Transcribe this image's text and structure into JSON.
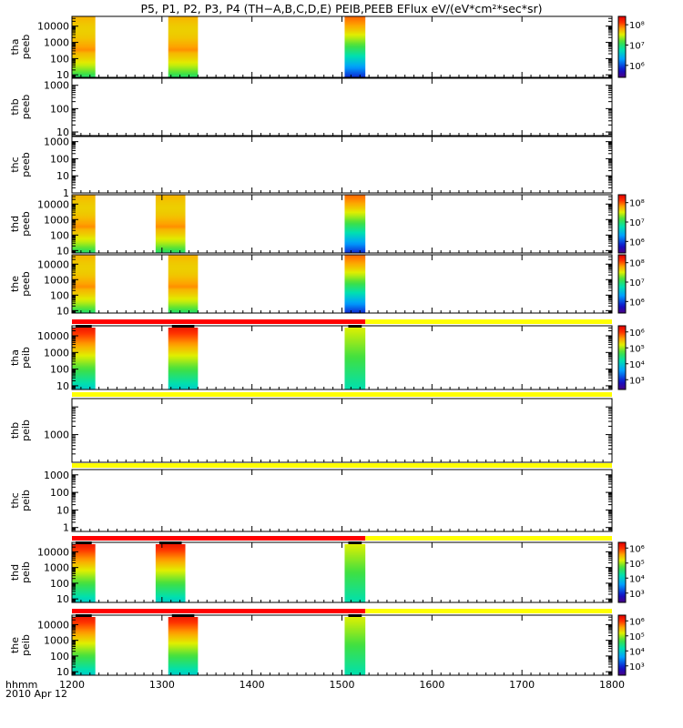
{
  "title": "P5, P1, P2, P3, P4 (TH−A,B,C,D,E) PEIB,PEEB EFlux eV/(eV*cm²*sec*sr)",
  "bottom_labels": {
    "format": "hhmm",
    "date": "2010 Apr 12"
  },
  "chart_data": {
    "type": "heatmap",
    "x_axis": {
      "range": [
        1200,
        1800
      ],
      "ticks": [
        1200,
        1300,
        1400,
        1500,
        1600,
        1700,
        1800
      ],
      "label": "hhmm"
    },
    "panels": [
      {
        "probe": "tha",
        "quantity": "peeb",
        "y_label": [
          "tha",
          "peeb"
        ],
        "yscale": "log",
        "yrange": [
          7,
          40000
        ],
        "yticks": [
          10,
          100,
          1000,
          10000
        ],
        "colorbar": {
          "min": 300000,
          "max": 300000000,
          "ticks": [
            "10⁶",
            "10⁷",
            "10⁸"
          ]
        },
        "intervals": [
          [
            1200,
            1226
          ],
          [
            1307,
            1340
          ],
          [
            1503,
            1526
          ]
        ],
        "bar_top": null
      },
      {
        "probe": "thb",
        "quantity": "peeb",
        "y_label": [
          "thb",
          "peeb"
        ],
        "yscale": "log",
        "yrange": [
          7,
          2000
        ],
        "yticks": [
          10,
          100,
          1000
        ],
        "colorbar": null,
        "intervals": [],
        "bar_top": null
      },
      {
        "probe": "thc",
        "quantity": "peeb",
        "y_label": [
          "thc",
          "peeb"
        ],
        "yscale": "log",
        "yrange": [
          1,
          2000
        ],
        "yticks": [
          1,
          10,
          100,
          1000
        ],
        "colorbar": null,
        "intervals": [],
        "bar_top": null
      },
      {
        "probe": "thd",
        "quantity": "peeb",
        "y_label": [
          "thd",
          "peeb"
        ],
        "yscale": "log",
        "yrange": [
          7,
          40000
        ],
        "yticks": [
          10,
          100,
          1000,
          10000
        ],
        "colorbar": {
          "min": 300000,
          "max": 300000000,
          "ticks": [
            "10⁶",
            "10⁷",
            "10⁸"
          ]
        },
        "intervals": [
          [
            1200,
            1226
          ],
          [
            1293,
            1326
          ],
          [
            1503,
            1526
          ]
        ],
        "bar_top": null
      },
      {
        "probe": "the",
        "quantity": "peeb",
        "y_label": [
          "the",
          "peeb"
        ],
        "yscale": "log",
        "yrange": [
          7,
          40000
        ],
        "yticks": [
          10,
          100,
          1000,
          10000
        ],
        "colorbar": {
          "min": 300000,
          "max": 300000000,
          "ticks": [
            "10⁶",
            "10⁷",
            "10⁸"
          ]
        },
        "intervals": [
          [
            1200,
            1226
          ],
          [
            1307,
            1340
          ],
          [
            1503,
            1526
          ]
        ],
        "bar_top": null
      },
      {
        "probe": "tha",
        "quantity": "peib",
        "y_label": [
          "tha",
          "peib"
        ],
        "yscale": "log",
        "yrange": [
          6,
          40000
        ],
        "yticks": [
          10,
          100,
          1000,
          10000
        ],
        "colorbar": {
          "min": 800,
          "max": 3000000,
          "ticks": [
            "10³",
            "10⁴",
            "10⁵",
            "10⁶"
          ]
        },
        "intervals": [
          [
            1200,
            1226
          ],
          [
            1307,
            1340
          ],
          [
            1503,
            1526
          ]
        ],
        "bar_top": [
          {
            "from": 1200,
            "to": 1526,
            "color": "#ff0000"
          },
          {
            "from": 1526,
            "to": 1800,
            "color": "#ffff00"
          }
        ]
      },
      {
        "probe": "thb",
        "quantity": "peib",
        "y_label": [
          "thb",
          "peib"
        ],
        "yscale": "log",
        "yrange": [
          100,
          20000
        ],
        "yticks": [
          1000
        ],
        "colorbar": null,
        "intervals": [],
        "bar_top": [
          {
            "from": 1200,
            "to": 1800,
            "color": "#ffff00"
          }
        ]
      },
      {
        "probe": "thc",
        "quantity": "peib",
        "y_label": [
          "thc",
          "peib"
        ],
        "yscale": "log",
        "yrange": [
          0.6,
          2000
        ],
        "yticks": [
          1,
          10,
          100,
          1000
        ],
        "colorbar": null,
        "intervals": [],
        "bar_top": [
          {
            "from": 1200,
            "to": 1800,
            "color": "#ffff00"
          }
        ]
      },
      {
        "probe": "thd",
        "quantity": "peib",
        "y_label": [
          "thd",
          "peib"
        ],
        "yscale": "log",
        "yrange": [
          6,
          40000
        ],
        "yticks": [
          10,
          100,
          1000,
          10000
        ],
        "colorbar": {
          "min": 800,
          "max": 3000000,
          "ticks": [
            "10³",
            "10⁴",
            "10⁵",
            "10⁶"
          ]
        },
        "intervals": [
          [
            1200,
            1226
          ],
          [
            1293,
            1326
          ],
          [
            1503,
            1526
          ]
        ],
        "bar_top": [
          {
            "from": 1200,
            "to": 1526,
            "color": "#ff0000"
          },
          {
            "from": 1526,
            "to": 1800,
            "color": "#ffff00"
          }
        ]
      },
      {
        "probe": "the",
        "quantity": "peib",
        "y_label": [
          "the",
          "peib"
        ],
        "yscale": "log",
        "yrange": [
          6,
          40000
        ],
        "yticks": [
          10,
          100,
          1000,
          10000
        ],
        "colorbar": {
          "min": 800,
          "max": 3000000,
          "ticks": [
            "10³",
            "10⁴",
            "10⁵",
            "10⁶"
          ]
        },
        "intervals": [
          [
            1200,
            1226
          ],
          [
            1307,
            1340
          ],
          [
            1503,
            1526
          ]
        ],
        "bar_top": [
          {
            "from": 1200,
            "to": 1526,
            "color": "#ff0000"
          },
          {
            "from": 1526,
            "to": 1800,
            "color": "#ffff00"
          }
        ]
      }
    ]
  }
}
